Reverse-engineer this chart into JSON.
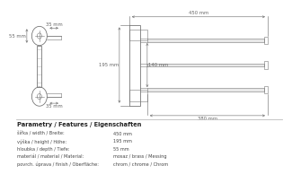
{
  "bg_color": "#ffffff",
  "dark_line": "#777777",
  "dim_line": "#888888",
  "text_color": "#666666",
  "title_section": "Parametry / Features / Eigenschaften",
  "params": [
    [
      "šířka / width / Breite:",
      "450 mm"
    ],
    [
      "výška / height / Höhe:",
      "195 mm"
    ],
    [
      "hloubka / depth / Tiefe:",
      "55 mm"
    ],
    [
      "materiál / material / Material:",
      "mosaz / brass / Messing"
    ],
    [
      "povrch. úprava / finish / Oberfläche:",
      "chrom / chrome / Chrom"
    ]
  ],
  "dim_450": "450 mm",
  "dim_195": "195 mm",
  "dim_140": "140 mm",
  "dim_380": "380 mm",
  "dim_55": "55 mm",
  "dim_35a": "35 mm",
  "dim_35b": "35 mm"
}
